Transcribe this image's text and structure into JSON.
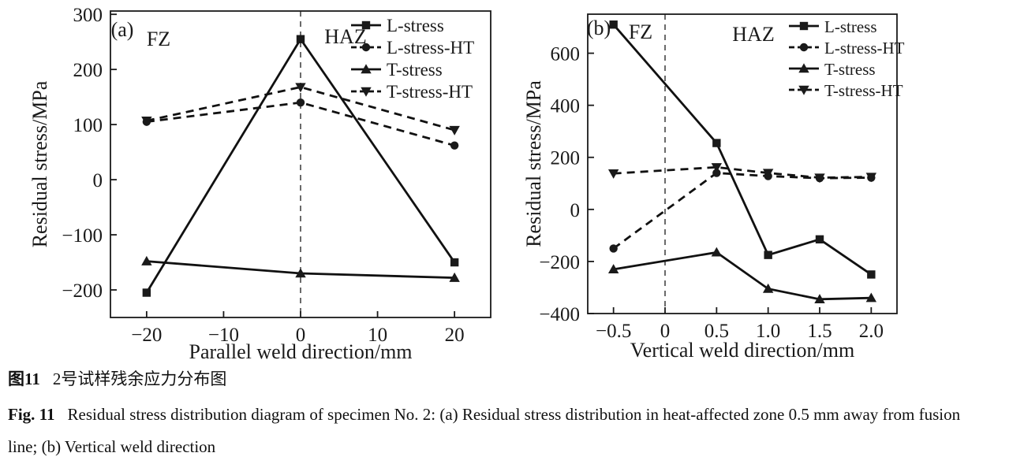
{
  "figure": {
    "caption": {
      "zh_label": "图11",
      "zh_text": "2号试样残余应力分布图",
      "en_label": "Fig. 11",
      "en_text": "Residual stress distribution diagram of specimen No. 2: (a) Residual stress distribution in heat-affected zone 0.5 mm away from fusion line; (b) Vertical weld direction"
    }
  },
  "chart_data": [
    {
      "type": "line",
      "panel_label": "(a)",
      "zone_fz": "FZ",
      "zone_haz": "HAZ",
      "xlabel": "Parallel weld direction/mm",
      "ylabel": "Residual stress/MPa",
      "xlim": [
        -24.7,
        24.7
      ],
      "ylim": [
        -250,
        306
      ],
      "grid": false,
      "legend_position": "top-right",
      "vline_x": 0,
      "xticks": [
        {
          "v": -20,
          "label": "−20"
        },
        {
          "v": -10,
          "label": "−10"
        },
        {
          "v": 0,
          "label": "0"
        },
        {
          "v": 10,
          "label": "10"
        },
        {
          "v": 20,
          "label": "20"
        }
      ],
      "yticks": [
        {
          "v": 300,
          "label": "300"
        },
        {
          "v": 200,
          "label": "200"
        },
        {
          "v": 100,
          "label": "100"
        },
        {
          "v": 0,
          "label": "0"
        },
        {
          "v": -100,
          "label": "−100"
        },
        {
          "v": -200,
          "label": "−200"
        }
      ],
      "x": [
        -20,
        0,
        20
      ],
      "series": [
        {
          "name": "L-stress",
          "marker": "square",
          "line": "solid",
          "color": "#111111",
          "values": [
            -205,
            255,
            -150
          ]
        },
        {
          "name": "L-stress-HT",
          "marker": "circle",
          "line": "dashed",
          "color": "#111111",
          "values": [
            105,
            140,
            62
          ]
        },
        {
          "name": "T-stress",
          "marker": "triangle-up",
          "line": "solid",
          "color": "#111111",
          "values": [
            -148,
            -170,
            -178
          ]
        },
        {
          "name": "T-stress-HT",
          "marker": "triangle-down",
          "line": "dashed",
          "color": "#111111",
          "values": [
            107,
            168,
            90
          ]
        }
      ]
    },
    {
      "type": "line",
      "panel_label": "(b)",
      "zone_fz": "FZ",
      "zone_haz": "HAZ",
      "xlabel": "Vertical weld direction/mm",
      "ylabel": "Residual stress/MPa",
      "xlim": [
        -0.75,
        2.25
      ],
      "ylim": [
        -400,
        750
      ],
      "grid": false,
      "legend_position": "top-right",
      "vline_x": 0,
      "xticks": [
        {
          "v": -0.5,
          "label": "−0.5"
        },
        {
          "v": 0,
          "label": "0"
        },
        {
          "v": 0.5,
          "label": "0.5"
        },
        {
          "v": 1.0,
          "label": "1.0"
        },
        {
          "v": 1.5,
          "label": "1.5"
        },
        {
          "v": 2.0,
          "label": "2.0"
        }
      ],
      "yticks": [
        {
          "v": 600,
          "label": "600"
        },
        {
          "v": 400,
          "label": "400"
        },
        {
          "v": 200,
          "label": "200"
        },
        {
          "v": 0,
          "label": "0"
        },
        {
          "v": -200,
          "label": "−200"
        },
        {
          "v": -400,
          "label": "−400"
        }
      ],
      "x": [
        -0.5,
        0.5,
        1.0,
        1.5,
        2.0
      ],
      "series": [
        {
          "name": "L-stress",
          "marker": "square",
          "line": "solid",
          "color": "#111111",
          "values": [
            710,
            255,
            -175,
            -115,
            -250
          ]
        },
        {
          "name": "L-stress-HT",
          "marker": "circle",
          "line": "dashed",
          "color": "#111111",
          "values": [
            -150,
            140,
            128,
            120,
            122
          ]
        },
        {
          "name": "T-stress",
          "marker": "triangle-up",
          "line": "solid",
          "color": "#111111",
          "values": [
            -230,
            -165,
            -305,
            -345,
            -340
          ]
        },
        {
          "name": "T-stress-HT",
          "marker": "triangle-down",
          "line": "dashed",
          "color": "#111111",
          "values": [
            138,
            162,
            140,
            122,
            125
          ]
        }
      ]
    }
  ]
}
